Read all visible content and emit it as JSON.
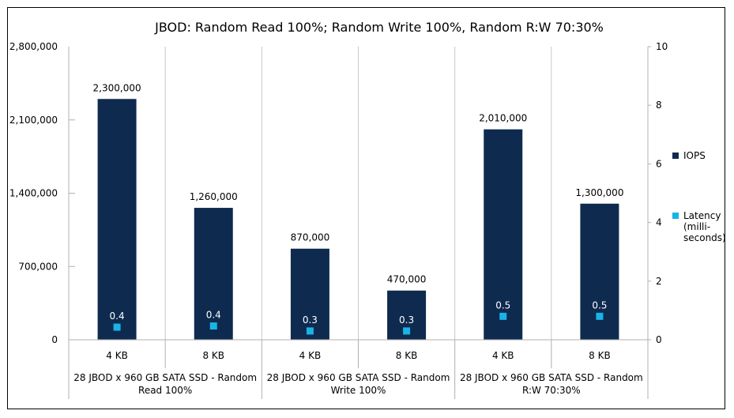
{
  "chart_data": {
    "type": "bar",
    "title": "JBOD: Random Read 100%; Random Write 100%, Random R:W 70:30%",
    "categories": [
      "4 KB",
      "8 KB",
      "4 KB",
      "8 KB",
      "4 KB",
      "8 KB"
    ],
    "groups": [
      {
        "label": "28 JBOD x 960 GB SATA SSD - Random Read 100%",
        "label_lines": [
          "28 JBOD x 960 GB SATA SSD - Random",
          "Read 100%"
        ],
        "span": [
          0,
          1
        ]
      },
      {
        "label": "28 JBOD x 960 GB SATA SSD - Random Write 100%",
        "label_lines": [
          "28 JBOD x 960 GB SATA SSD - Random",
          "Write 100%"
        ],
        "span": [
          2,
          3
        ]
      },
      {
        "label": "28 JBOD x 960 GB SATA SSD - Random R:W 70:30%",
        "label_lines": [
          "28 JBOD x 960 GB SATA SSD - Random",
          "R:W 70:30%"
        ],
        "span": [
          4,
          5
        ]
      }
    ],
    "series": [
      {
        "name": "IOPS",
        "kind": "bar",
        "axis": "left",
        "color": "#0e2a4f",
        "values": [
          2300000,
          1260000,
          870000,
          470000,
          2010000,
          1300000
        ],
        "labels": [
          "2,300,000",
          "1,260,000",
          "870,000",
          "470,000",
          "2,010,000",
          "1,300,000"
        ]
      },
      {
        "name": "Latency (milli-seconds)",
        "legend_lines": [
          "Latency",
          "(milli-",
          "seconds)"
        ],
        "kind": "marker",
        "axis": "right",
        "color": "#1ab3e6",
        "values": [
          0.4,
          0.4,
          0.3,
          0.3,
          0.5,
          0.5
        ],
        "marker_y": [
          0.43,
          0.47,
          0.3,
          0.3,
          0.8,
          0.8
        ],
        "labels": [
          "0.4",
          "0.4",
          "0.3",
          "0.3",
          "0.5",
          "0.5"
        ]
      }
    ],
    "y_left": {
      "ylim": [
        0,
        2800000
      ],
      "ticks": [
        0,
        700000,
        1400000,
        2100000,
        2800000
      ],
      "tick_labels": [
        "0",
        "700,000",
        "1,400,000",
        "2,100,000",
        "2,800,000"
      ]
    },
    "y_right": {
      "ylim": [
        0,
        10
      ],
      "ticks": [
        0,
        2,
        4,
        6,
        8,
        10
      ],
      "tick_labels": [
        "0",
        "2",
        "4",
        "6",
        "8",
        "10"
      ]
    },
    "grid": {
      "vertical_separators": true,
      "horizontal_reference_lines": true
    },
    "legend": {
      "position": "right"
    }
  }
}
